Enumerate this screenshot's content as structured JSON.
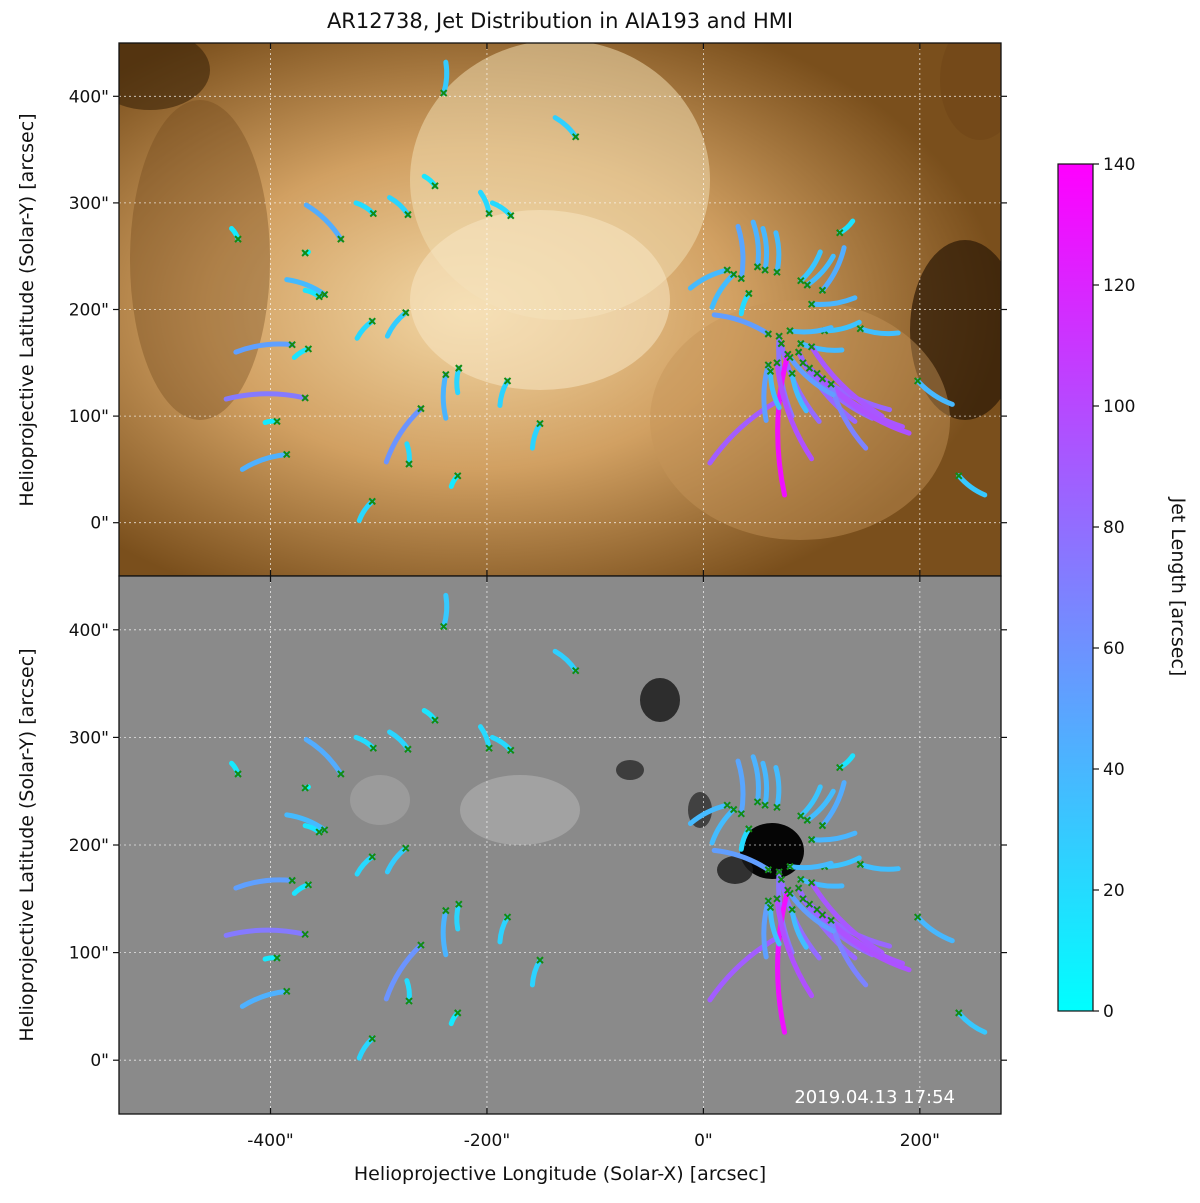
{
  "chart_data": {
    "type": "scatter",
    "title": "AR12738, Jet Distribution in AIA193 and HMI",
    "xlabel": "Helioprojective Longitude (Solar-X) [arcsec]",
    "ylabel": "Helioprojective Latitude (Solar-Y) [arcsec]",
    "xlim": [
      -540,
      275
    ],
    "ylim": [
      -50,
      450
    ],
    "x_ticks": [
      -400,
      -200,
      0,
      200
    ],
    "x_tick_labels": [
      "-400\"",
      "-200\"",
      "0\"",
      "200\""
    ],
    "y_ticks": [
      0,
      100,
      200,
      300,
      400
    ],
    "y_tick_labels": [
      "0\"",
      "100\"",
      "200\"",
      "300\"",
      "400\""
    ],
    "grid": true,
    "timestamp": "2019.04.13 17:54",
    "colorbar": {
      "label": "Jet Length [arcsec]",
      "range": [
        0,
        140
      ],
      "ticks": [
        0,
        20,
        40,
        60,
        80,
        100,
        120,
        140
      ],
      "tick_labels": [
        "0",
        "20",
        "40",
        "60",
        "80",
        "100",
        "120",
        "140"
      ],
      "colors": [
        "#00ffff",
        "#ff00ff"
      ]
    },
    "panels": [
      {
        "name": "AIA193 (upper)"
      },
      {
        "name": "HMI (lower)"
      }
    ],
    "jets": [
      {
        "base": [
          -240,
          403
        ],
        "end": [
          -238,
          432
        ],
        "length": 29
      },
      {
        "base": [
          -118,
          362
        ],
        "end": [
          -137,
          380
        ],
        "length": 26
      },
      {
        "base": [
          -430,
          266
        ],
        "end": [
          -436,
          276
        ],
        "length": 12
      },
      {
        "base": [
          -335,
          266
        ],
        "end": [
          -367,
          298
        ],
        "length": 45
      },
      {
        "base": [
          -305,
          290
        ],
        "end": [
          -321,
          300
        ],
        "length": 19
      },
      {
        "base": [
          -273,
          289
        ],
        "end": [
          -290,
          305
        ],
        "length": 23
      },
      {
        "base": [
          -248,
          316
        ],
        "end": [
          -258,
          325
        ],
        "length": 14
      },
      {
        "base": [
          -198,
          290
        ],
        "end": [
          -206,
          310
        ],
        "length": 21
      },
      {
        "base": [
          -178,
          288
        ],
        "end": [
          -195,
          300
        ],
        "length": 21
      },
      {
        "base": [
          -368,
          253
        ],
        "end": [
          -365,
          254
        ],
        "length": 4
      },
      {
        "base": [
          -350,
          214
        ],
        "end": [
          -385,
          228
        ],
        "length": 38
      },
      {
        "base": [
          -355,
          212
        ],
        "end": [
          -368,
          218
        ],
        "length": 15
      },
      {
        "base": [
          -306,
          189
        ],
        "end": [
          -320,
          173
        ],
        "length": 21
      },
      {
        "base": [
          -275,
          197
        ],
        "end": [
          -292,
          175
        ],
        "length": 28
      },
      {
        "base": [
          -380,
          167
        ],
        "end": [
          -432,
          160
        ],
        "length": 52
      },
      {
        "base": [
          -365,
          163
        ],
        "end": [
          -378,
          155
        ],
        "length": 15
      },
      {
        "base": [
          -368,
          117
        ],
        "end": [
          -441,
          116
        ],
        "length": 73
      },
      {
        "base": [
          -394,
          95
        ],
        "end": [
          -405,
          94
        ],
        "length": 11
      },
      {
        "base": [
          -385,
          64
        ],
        "end": [
          -426,
          50
        ],
        "length": 43
      },
      {
        "base": [
          -261,
          107
        ],
        "end": [
          -293,
          57
        ],
        "length": 59
      },
      {
        "base": [
          -272,
          55
        ],
        "end": [
          -274,
          74
        ],
        "length": 19
      },
      {
        "base": [
          -238,
          139
        ],
        "end": [
          -238,
          98
        ],
        "length": 41
      },
      {
        "base": [
          -226,
          145
        ],
        "end": [
          -227,
          122
        ],
        "length": 23
      },
      {
        "base": [
          -181,
          133
        ],
        "end": [
          -188,
          110
        ],
        "length": 24
      },
      {
        "base": [
          -151,
          93
        ],
        "end": [
          -158,
          70
        ],
        "length": 24
      },
      {
        "base": [
          -227,
          44
        ],
        "end": [
          -233,
          34
        ],
        "length": 12
      },
      {
        "base": [
          -306,
          20
        ],
        "end": [
          -318,
          2
        ],
        "length": 22
      },
      {
        "base": [
          198,
          133
        ],
        "end": [
          230,
          111
        ],
        "length": 39
      },
      {
        "base": [
          236,
          44
        ],
        "end": [
          260,
          26
        ],
        "length": 30
      },
      {
        "base": [
          22,
          237
        ],
        "end": [
          -12,
          220
        ],
        "length": 38
      },
      {
        "base": [
          28,
          233
        ],
        "end": [
          8,
          202
        ],
        "length": 37
      },
      {
        "base": [
          35,
          229
        ],
        "end": [
          32,
          278
        ],
        "length": 49
      },
      {
        "base": [
          42,
          215
        ],
        "end": [
          35,
          196
        ],
        "length": 20
      },
      {
        "base": [
          50,
          240
        ],
        "end": [
          46,
          282
        ],
        "length": 42
      },
      {
        "base": [
          57,
          237
        ],
        "end": [
          55,
          276
        ],
        "length": 39
      },
      {
        "base": [
          68,
          235
        ],
        "end": [
          67,
          272
        ],
        "length": 37
      },
      {
        "base": [
          90,
          227
        ],
        "end": [
          108,
          254
        ],
        "length": 32
      },
      {
        "base": [
          96,
          223
        ],
        "end": [
          120,
          250
        ],
        "length": 36
      },
      {
        "base": [
          110,
          218
        ],
        "end": [
          130,
          258
        ],
        "length": 45
      },
      {
        "base": [
          126,
          272
        ],
        "end": [
          138,
          283
        ],
        "length": 16
      },
      {
        "base": [
          100,
          205
        ],
        "end": [
          140,
          211
        ],
        "length": 40
      },
      {
        "base": [
          112,
          180
        ],
        "end": [
          144,
          188
        ],
        "length": 33
      },
      {
        "base": [
          145,
          182
        ],
        "end": [
          180,
          178
        ],
        "length": 35
      },
      {
        "base": [
          60,
          177
        ],
        "end": [
          10,
          195
        ],
        "length": 53
      },
      {
        "base": [
          80,
          180
        ],
        "end": [
          118,
          183
        ],
        "length": 38
      },
      {
        "base": [
          90,
          168
        ],
        "end": [
          128,
          162
        ],
        "length": 38
      },
      {
        "base": [
          70,
          175
        ],
        "end": [
          82,
          100
        ],
        "length": 76
      },
      {
        "base": [
          72,
          168
        ],
        "end": [
          107,
          95
        ],
        "length": 81
      },
      {
        "base": [
          88,
          160
        ],
        "end": [
          140,
          95
        ],
        "length": 84
      },
      {
        "base": [
          92,
          150
        ],
        "end": [
          156,
          98
        ],
        "length": 83
      },
      {
        "base": [
          98,
          145
        ],
        "end": [
          172,
          106
        ],
        "length": 84
      },
      {
        "base": [
          105,
          140
        ],
        "end": [
          184,
          90
        ],
        "length": 93
      },
      {
        "base": [
          110,
          135
        ],
        "end": [
          190,
          84
        ],
        "length": 95
      },
      {
        "base": [
          118,
          130
        ],
        "end": [
          150,
          70
        ],
        "length": 68
      },
      {
        "base": [
          72,
          116
        ],
        "end": [
          6,
          56
        ],
        "length": 89
      },
      {
        "base": [
          78,
          158
        ],
        "end": [
          75,
          26
        ],
        "length": 132
      },
      {
        "base": [
          68,
          150
        ],
        "end": [
          100,
          60
        ],
        "length": 96
      },
      {
        "base": [
          60,
          148
        ],
        "end": [
          58,
          96
        ],
        "length": 52
      },
      {
        "base": [
          80,
          155
        ],
        "end": [
          120,
          120
        ],
        "length": 53
      },
      {
        "base": [
          100,
          165
        ],
        "end": [
          165,
          100
        ],
        "length": 92
      },
      {
        "base": [
          62,
          142
        ],
        "end": [
          70,
          108
        ],
        "length": 35
      },
      {
        "base": [
          82,
          140
        ],
        "end": [
          95,
          105
        ],
        "length": 37
      }
    ]
  }
}
